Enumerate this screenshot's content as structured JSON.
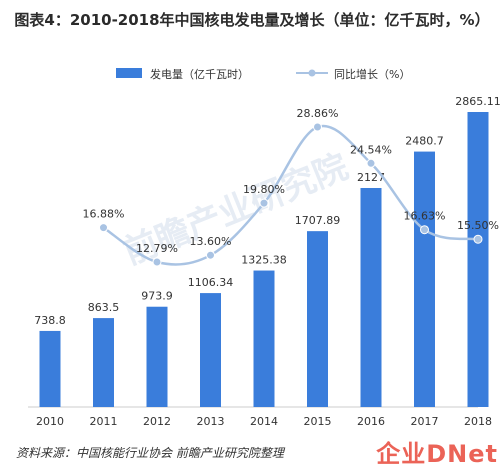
{
  "title": "图表4：2010-2018年中国核电发电量及增长（单位：亿千瓦时，%）",
  "source": "资料来源：中国核能行业协会 前瞻产业研究院整理",
  "watermark": "前瞻产业研究院",
  "brand_watermark": "企业DNet",
  "colors": {
    "bar": "#3a7ddb",
    "line": "#a9c3e3",
    "marker": "#a9c3e3",
    "text": "#333333"
  },
  "chart_data": {
    "type": "bar",
    "categories": [
      "2010",
      "2011",
      "2012",
      "2013",
      "2014",
      "2015",
      "2016",
      "2017",
      "2018"
    ],
    "series": [
      {
        "name": "发电量（亿千瓦时）",
        "type": "bar",
        "values": [
          738.8,
          863.5,
          973.9,
          1106.34,
          1325.38,
          1707.89,
          2127,
          2480.7,
          2865.11
        ],
        "labels": [
          "738.8",
          "863.5",
          "973.9",
          "1106.34",
          "1325.38",
          "1707.89",
          "2127",
          "2480.7",
          "2865.11"
        ]
      },
      {
        "name": "同比增长（%）",
        "type": "line",
        "values": [
          null,
          16.88,
          12.79,
          13.6,
          19.8,
          28.86,
          24.54,
          16.63,
          15.5
        ],
        "labels": [
          "",
          "16.88%",
          "12.79%",
          "13.60%",
          "19.80%",
          "28.86%",
          "24.54%",
          "16.63%",
          "15.50%"
        ]
      }
    ],
    "legend_position": "top",
    "grid": false
  }
}
